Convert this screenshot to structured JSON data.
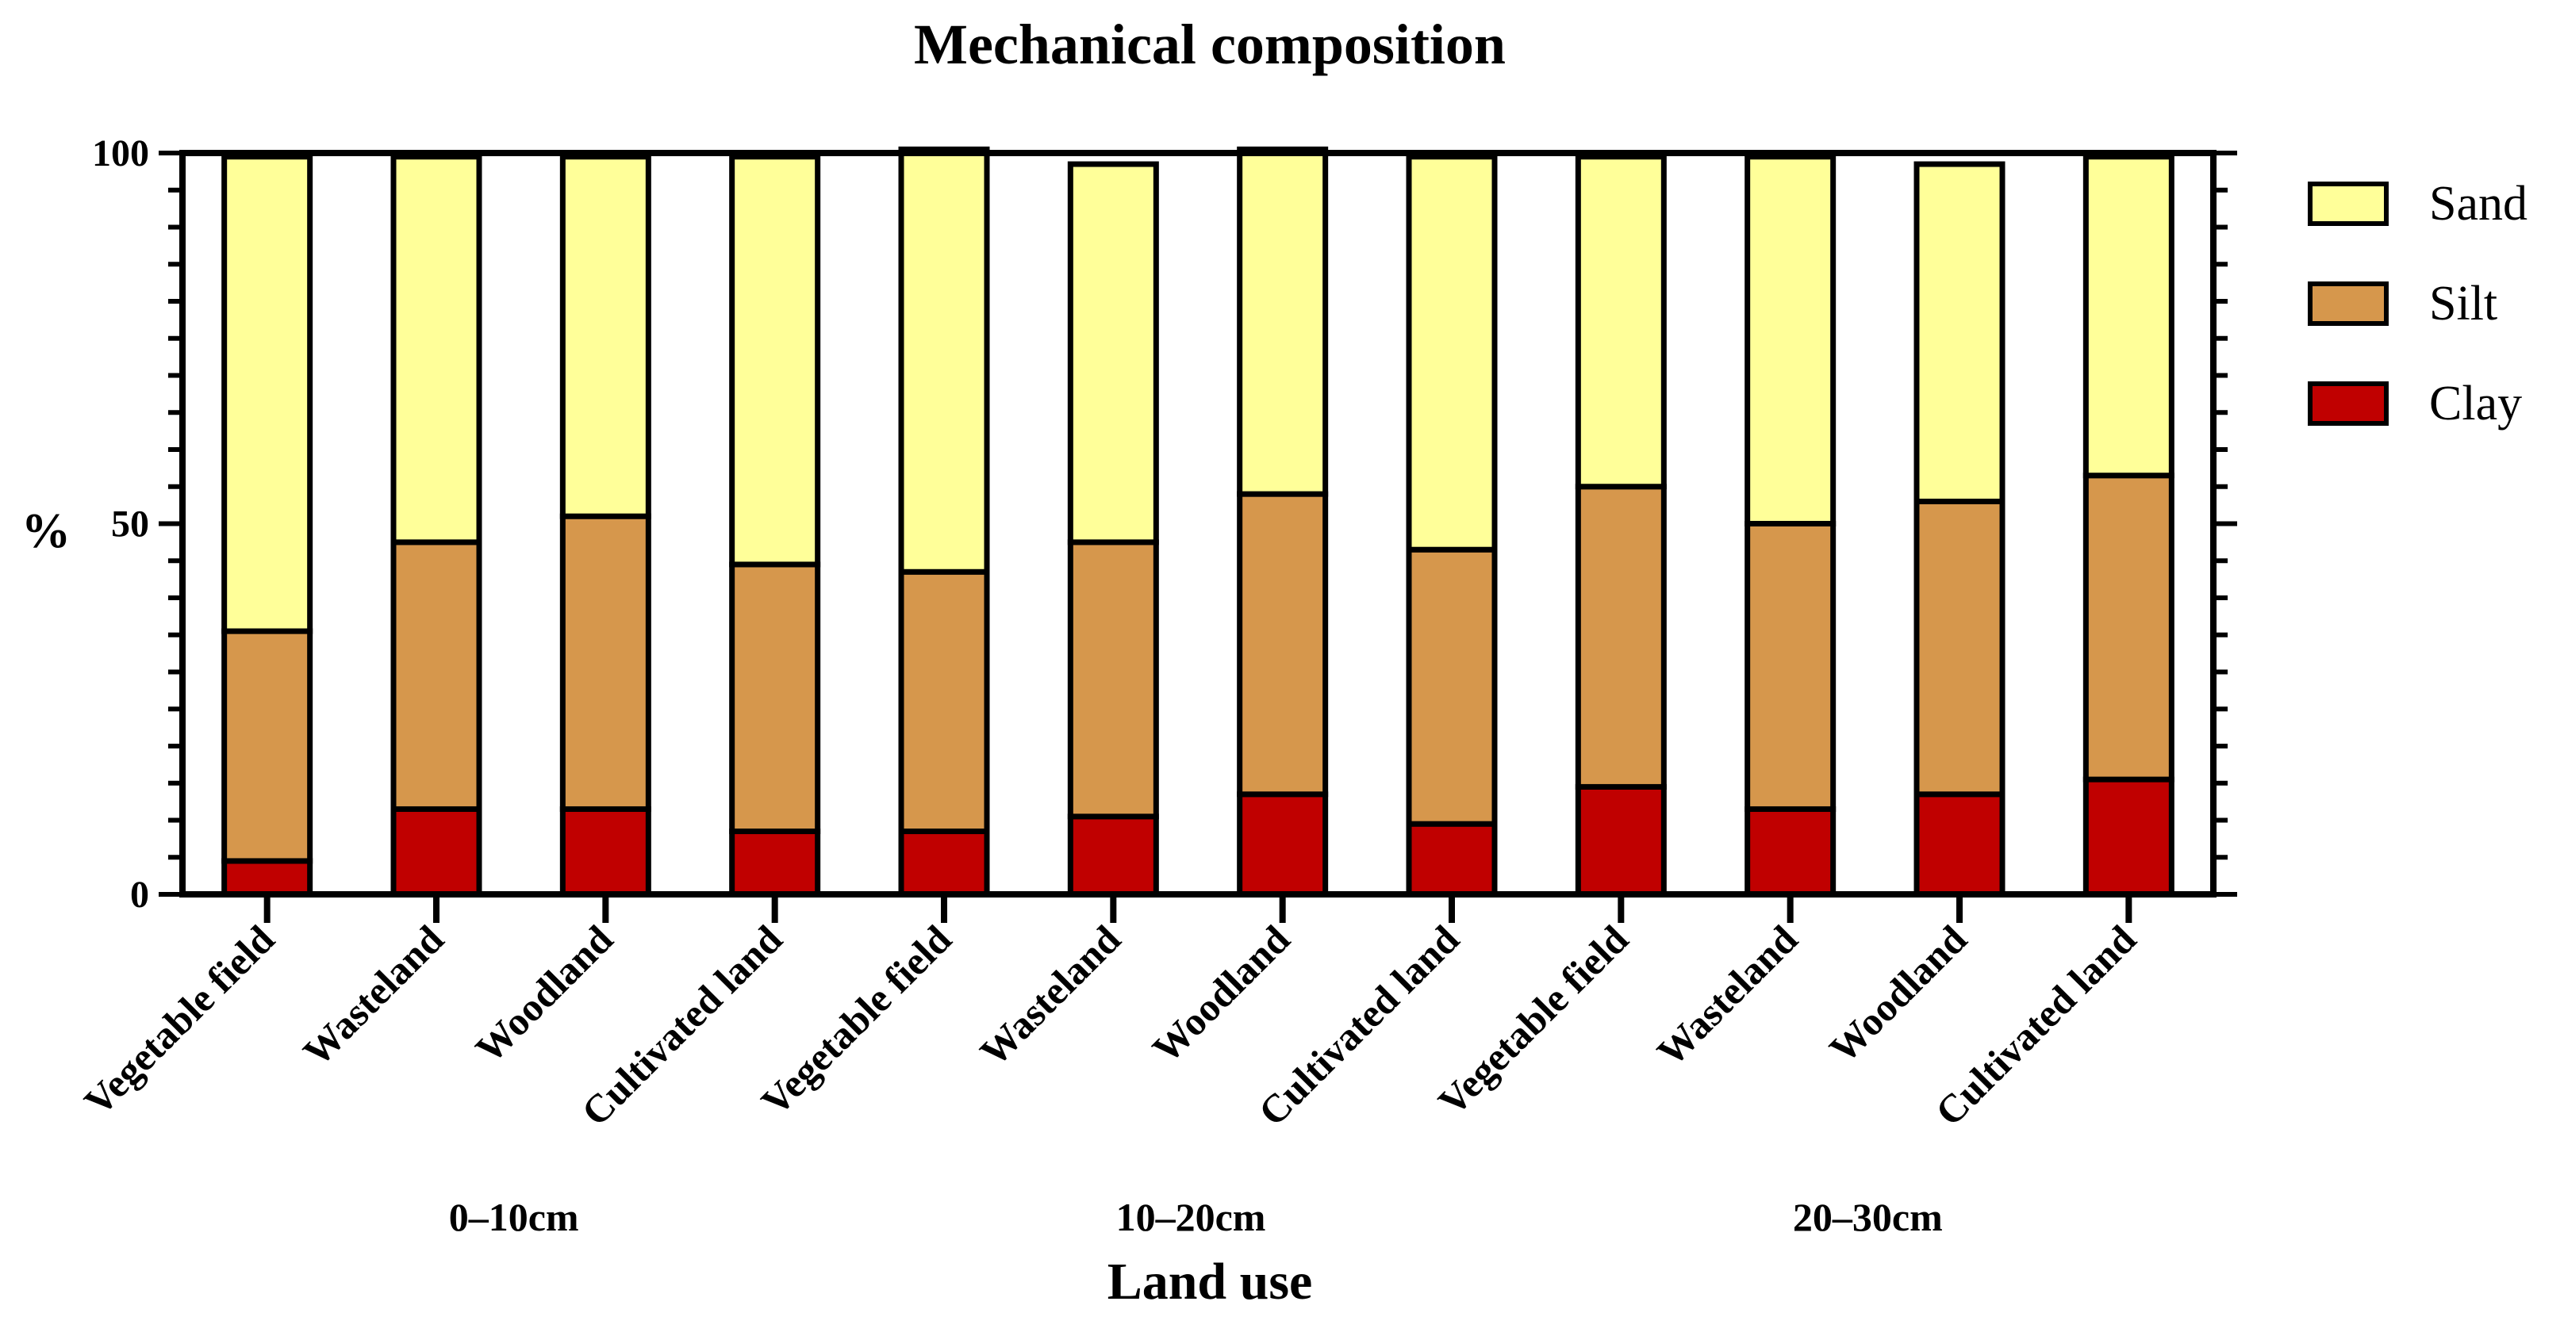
{
  "chart_data": {
    "type": "bar",
    "stacked": true,
    "title": "Mechanical composition",
    "xlabel": "Land use",
    "ylabel": "%",
    "ylim": [
      0,
      100
    ],
    "yticks": [
      0,
      50,
      100
    ],
    "categories": [
      "Vegetable field",
      "Wasteland",
      "Woodland",
      "Cultivated land",
      "Vegetable field",
      "Wasteland",
      "Woodland",
      "Cultivated land",
      "Vegetable field",
      "Wasteland",
      "Woodland",
      "Cultivated land"
    ],
    "groups": [
      {
        "label": "0–10cm",
        "start": 0,
        "end": 3
      },
      {
        "label": "10–20cm",
        "start": 4,
        "end": 7
      },
      {
        "label": "20–30cm",
        "start": 8,
        "end": 11
      }
    ],
    "series": [
      {
        "name": "Clay",
        "color": "#c00000",
        "values": [
          4.5,
          11.5,
          11.5,
          8.5,
          8.5,
          10.5,
          13.5,
          9.5,
          14.5,
          11.5,
          13.5,
          15.5
        ]
      },
      {
        "name": "Silt",
        "color": "#d6974c",
        "values": [
          31.0,
          36.0,
          39.5,
          36.0,
          35.0,
          37.0,
          40.5,
          37.0,
          40.5,
          38.5,
          39.5,
          41.0
        ]
      },
      {
        "name": "Sand",
        "color": "#ffff99",
        "values": [
          64.0,
          52.0,
          48.5,
          55.0,
          57.0,
          51.0,
          46.5,
          53.0,
          44.5,
          49.5,
          45.5,
          43.0
        ]
      }
    ],
    "legend": {
      "position": "right",
      "order": [
        "Sand",
        "Silt",
        "Clay"
      ]
    }
  }
}
